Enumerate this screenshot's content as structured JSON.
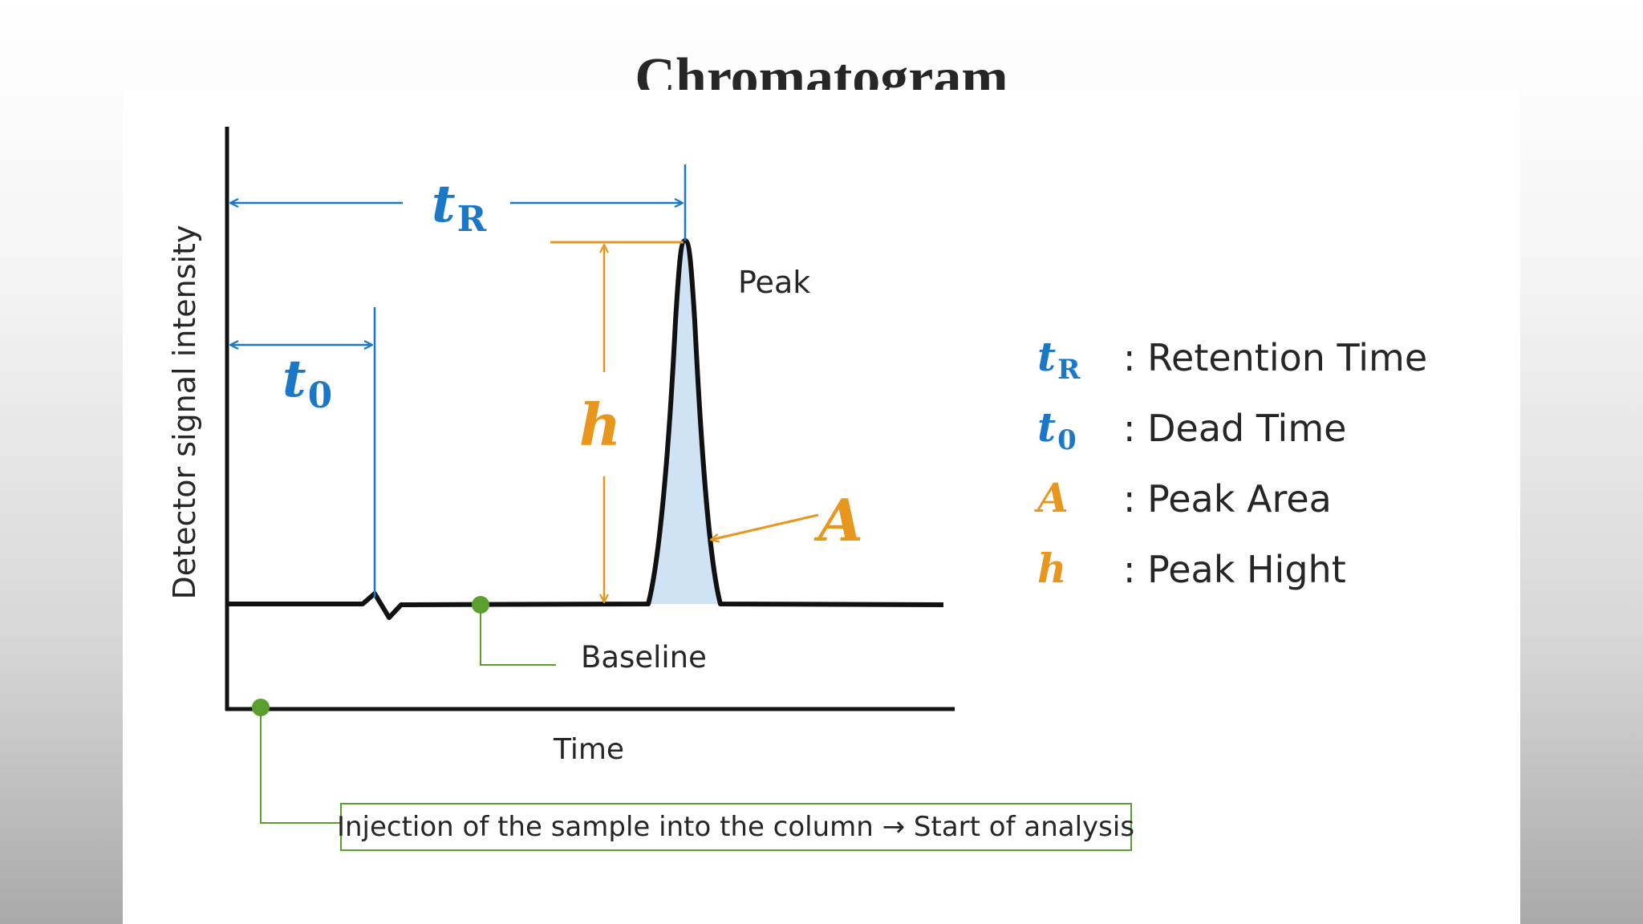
{
  "title": "Chromatogram",
  "axes": {
    "y_label": "Detector signal intensity",
    "x_label": "Time"
  },
  "labels": {
    "peak": "Peak",
    "baseline": "Baseline",
    "injection_note": "Injection of the sample into the column → Start of analysis"
  },
  "symbols": {
    "retention": {
      "base": "t",
      "sub": "R"
    },
    "dead": {
      "base": "t",
      "sub": "0"
    },
    "height": "h",
    "area": "A"
  },
  "legend": [
    {
      "symbol": "t",
      "sub": "R",
      "color": "#1a78c6",
      "text": ": Retention Time"
    },
    {
      "symbol": "t",
      "sub": "0",
      "color": "#1a78c6",
      "text": ": Dead Time"
    },
    {
      "symbol": "A",
      "sub": "",
      "color": "#e8971e",
      "text": ": Peak Area"
    },
    {
      "symbol": "h",
      "sub": "",
      "color": "#e8971e",
      "text": ": Peak Hight"
    }
  ],
  "colors": {
    "blue": "#1a78c6",
    "orange": "#e8971e",
    "green": "#5a9e2e",
    "peak_fill": "#cfe3f5",
    "ink": "#111111"
  }
}
